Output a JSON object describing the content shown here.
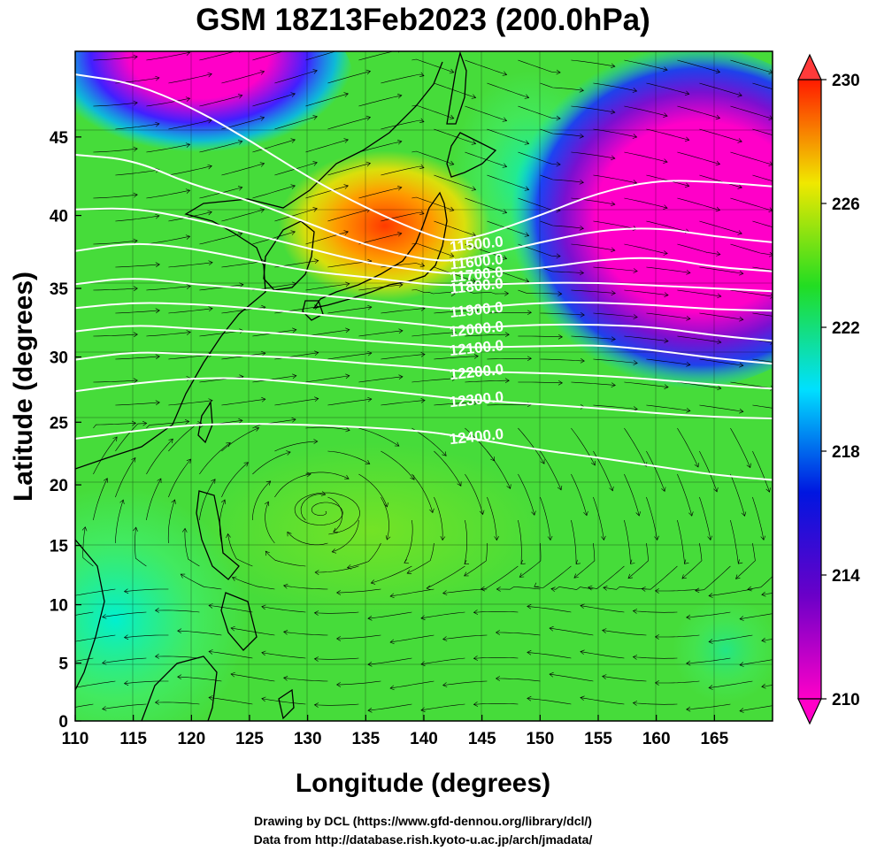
{
  "title": "GSM 18Z13Feb2023 (200.0hPa)",
  "xlabel": "Longitude (degrees)",
  "ylabel": "Latitude  (degrees)",
  "credits": [
    "Drawing by DCL (https://www.gfd-dennou.org/library/dcl/)",
    "Data from http://database.rish.kyoto-u.ac.jp/arch/jmadata/"
  ],
  "chart_data": {
    "type": "heatmap",
    "xlim": [
      110,
      170
    ],
    "ylim": [
      0,
      50
    ],
    "xticks": [
      "110",
      "115",
      "120",
      "125",
      "130",
      "135",
      "140",
      "145",
      "150",
      "155",
      "160",
      "165"
    ],
    "yticks": [
      "0",
      "5",
      "10",
      "15",
      "20",
      "25",
      "30",
      "35",
      "40",
      "45"
    ],
    "colorbar": {
      "min": 210,
      "max": 230,
      "ticks": [
        "210",
        "214",
        "218",
        "222",
        "226",
        "230"
      ],
      "colors": [
        "#ff00c8",
        "#6a00c8",
        "#0016e0",
        "#00e0ff",
        "#22dd22",
        "#f0e800",
        "#ff1a00"
      ],
      "extend": "both"
    },
    "contours": [
      {
        "label": "11500.0",
        "points": [
          [
            110,
            48.7
          ],
          [
            115,
            48.2
          ],
          [
            120,
            46.8
          ],
          [
            125,
            44.8
          ],
          [
            130,
            42.5
          ],
          [
            135,
            40.5
          ],
          [
            140,
            38.8
          ],
          [
            143,
            38.1
          ],
          [
            150,
            40.0
          ],
          [
            155,
            41.5
          ],
          [
            160,
            42.3
          ],
          [
            165,
            42.2
          ],
          [
            170,
            41.9
          ]
        ]
      },
      {
        "label": "11600.0",
        "points": [
          [
            110,
            43.9
          ],
          [
            115,
            43.6
          ],
          [
            120,
            42.0
          ],
          [
            125,
            41.0
          ],
          [
            130,
            39.5
          ],
          [
            135,
            38.0
          ],
          [
            140,
            37.0
          ],
          [
            143,
            36.9
          ],
          [
            150,
            38.2
          ],
          [
            155,
            39.0
          ],
          [
            160,
            39.2
          ],
          [
            165,
            38.6
          ],
          [
            170,
            38.2
          ]
        ]
      },
      {
        "label": "11700.0",
        "points": [
          [
            110,
            40.4
          ],
          [
            115,
            40.5
          ],
          [
            120,
            39.8
          ],
          [
            125,
            38.8
          ],
          [
            130,
            37.8
          ],
          [
            135,
            36.8
          ],
          [
            140,
            36.2
          ],
          [
            143,
            36.0
          ],
          [
            150,
            36.4
          ],
          [
            155,
            37.0
          ],
          [
            160,
            37.2
          ],
          [
            165,
            36.5
          ],
          [
            170,
            36.2
          ]
        ]
      },
      {
        "label": "11800.0",
        "points": [
          [
            110,
            37.6
          ],
          [
            115,
            38.2
          ],
          [
            120,
            37.8
          ],
          [
            125,
            37.0
          ],
          [
            130,
            36.2
          ],
          [
            135,
            35.8
          ],
          [
            140,
            35.3
          ],
          [
            143,
            35.2
          ],
          [
            150,
            35.4
          ],
          [
            155,
            35.4
          ],
          [
            160,
            35.2
          ],
          [
            165,
            35.0
          ],
          [
            170,
            34.8
          ]
        ]
      },
      {
        "label": "11900.0",
        "points": [
          [
            110,
            35.3
          ],
          [
            115,
            35.8
          ],
          [
            120,
            35.3
          ],
          [
            125,
            35.0
          ],
          [
            130,
            34.6
          ],
          [
            135,
            34.2
          ],
          [
            140,
            33.7
          ],
          [
            143,
            33.5
          ],
          [
            150,
            34.0
          ],
          [
            155,
            34.0
          ],
          [
            160,
            33.8
          ],
          [
            165,
            33.5
          ],
          [
            170,
            33.4
          ]
        ]
      },
      {
        "label": "12000.0",
        "points": [
          [
            110,
            33.6
          ],
          [
            115,
            34.0
          ],
          [
            120,
            33.9
          ],
          [
            125,
            33.6
          ],
          [
            130,
            33.2
          ],
          [
            135,
            32.8
          ],
          [
            140,
            32.4
          ],
          [
            143,
            32.1
          ],
          [
            150,
            32.4
          ],
          [
            155,
            32.4
          ],
          [
            160,
            32.2
          ],
          [
            165,
            31.6
          ],
          [
            170,
            31.2
          ]
        ]
      },
      {
        "label": "12100.0",
        "points": [
          [
            110,
            31.9
          ],
          [
            115,
            32.4
          ],
          [
            120,
            32.1
          ],
          [
            125,
            31.9
          ],
          [
            130,
            31.6
          ],
          [
            135,
            31.2
          ],
          [
            140,
            30.9
          ],
          [
            143,
            30.7
          ],
          [
            150,
            30.8
          ],
          [
            155,
            30.9
          ],
          [
            160,
            30.5
          ],
          [
            165,
            29.9
          ],
          [
            170,
            29.5
          ]
        ]
      },
      {
        "label": "12200.0",
        "points": [
          [
            110,
            29.8
          ],
          [
            115,
            30.4
          ],
          [
            120,
            30.2
          ],
          [
            125,
            30.1
          ],
          [
            130,
            29.9
          ],
          [
            135,
            29.5
          ],
          [
            140,
            29.2
          ],
          [
            143,
            28.9
          ],
          [
            150,
            28.8
          ],
          [
            155,
            28.6
          ],
          [
            160,
            28.3
          ],
          [
            165,
            27.9
          ],
          [
            170,
            27.6
          ]
        ]
      },
      {
        "label": "12300.0",
        "points": [
          [
            110,
            27.4
          ],
          [
            115,
            28.0
          ],
          [
            120,
            28.4
          ],
          [
            125,
            28.4
          ],
          [
            130,
            28.0
          ],
          [
            135,
            27.6
          ],
          [
            140,
            27.1
          ],
          [
            143,
            26.8
          ],
          [
            150,
            26.4
          ],
          [
            155,
            26.1
          ],
          [
            160,
            25.7
          ],
          [
            165,
            25.4
          ],
          [
            170,
            25.3
          ]
        ]
      },
      {
        "label": "12400.0",
        "points": [
          [
            110,
            23.7
          ],
          [
            115,
            24.3
          ],
          [
            120,
            24.8
          ],
          [
            125,
            24.9
          ],
          [
            130,
            24.8
          ],
          [
            135,
            24.6
          ],
          [
            140,
            24.3
          ],
          [
            143,
            23.9
          ],
          [
            150,
            22.8
          ],
          [
            155,
            22.2
          ],
          [
            160,
            21.5
          ],
          [
            165,
            20.8
          ],
          [
            170,
            20.4
          ]
        ]
      }
    ],
    "field_regions": [
      {
        "value": 227,
        "lon": 137,
        "lat": 38.5,
        "note": "jet core maximum"
      },
      {
        "value": 210,
        "lon": 162,
        "lat": 38,
        "note": "minimum east of Japan"
      },
      {
        "value": 210,
        "lon": 120,
        "lat": 49,
        "note": "minimum north-west"
      },
      {
        "value": 218,
        "lon": 112,
        "lat": 4
      },
      {
        "value": 222,
        "lon": 140,
        "lat": 10
      }
    ]
  }
}
